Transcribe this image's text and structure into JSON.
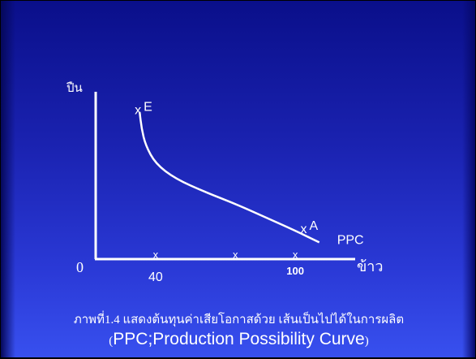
{
  "slide": {
    "caption_line1": "ภาพที่1.4 แสดงต้นทุนค่าเสียโอกาสด้วย เส้นเป็นไปได้ในการผลิต",
    "caption_line2_open": "(",
    "caption_line2_text": "PPC;Production  Possibility Curve",
    "caption_line2_close": ")"
  },
  "colors": {
    "background_top": "#0a0f8a",
    "background_bottom": "#3850ef",
    "foreground": "#ffffff"
  },
  "chart_data": {
    "type": "line",
    "title": "",
    "ylabel": "ปืน",
    "xlabel": "ข้าว",
    "origin_label": "0",
    "x_tick_labels": [
      "40",
      "100"
    ],
    "xlim": [
      0,
      130
    ],
    "ylim": [
      0,
      100
    ],
    "grid": false,
    "series": [
      {
        "name": "PPC",
        "x": [
          22,
          23,
          25,
          30,
          40,
          55,
          70,
          85,
          100,
          112
        ],
        "y": [
          88,
          78,
          68,
          57,
          48,
          40,
          33,
          25,
          17,
          10
        ]
      }
    ],
    "points": [
      {
        "label": "E",
        "marker": "x",
        "x": 22,
        "y": 89
      },
      {
        "label": "A",
        "marker": "x",
        "x": 105,
        "y": 18
      }
    ],
    "x_markers": [
      30,
      70,
      100
    ]
  }
}
